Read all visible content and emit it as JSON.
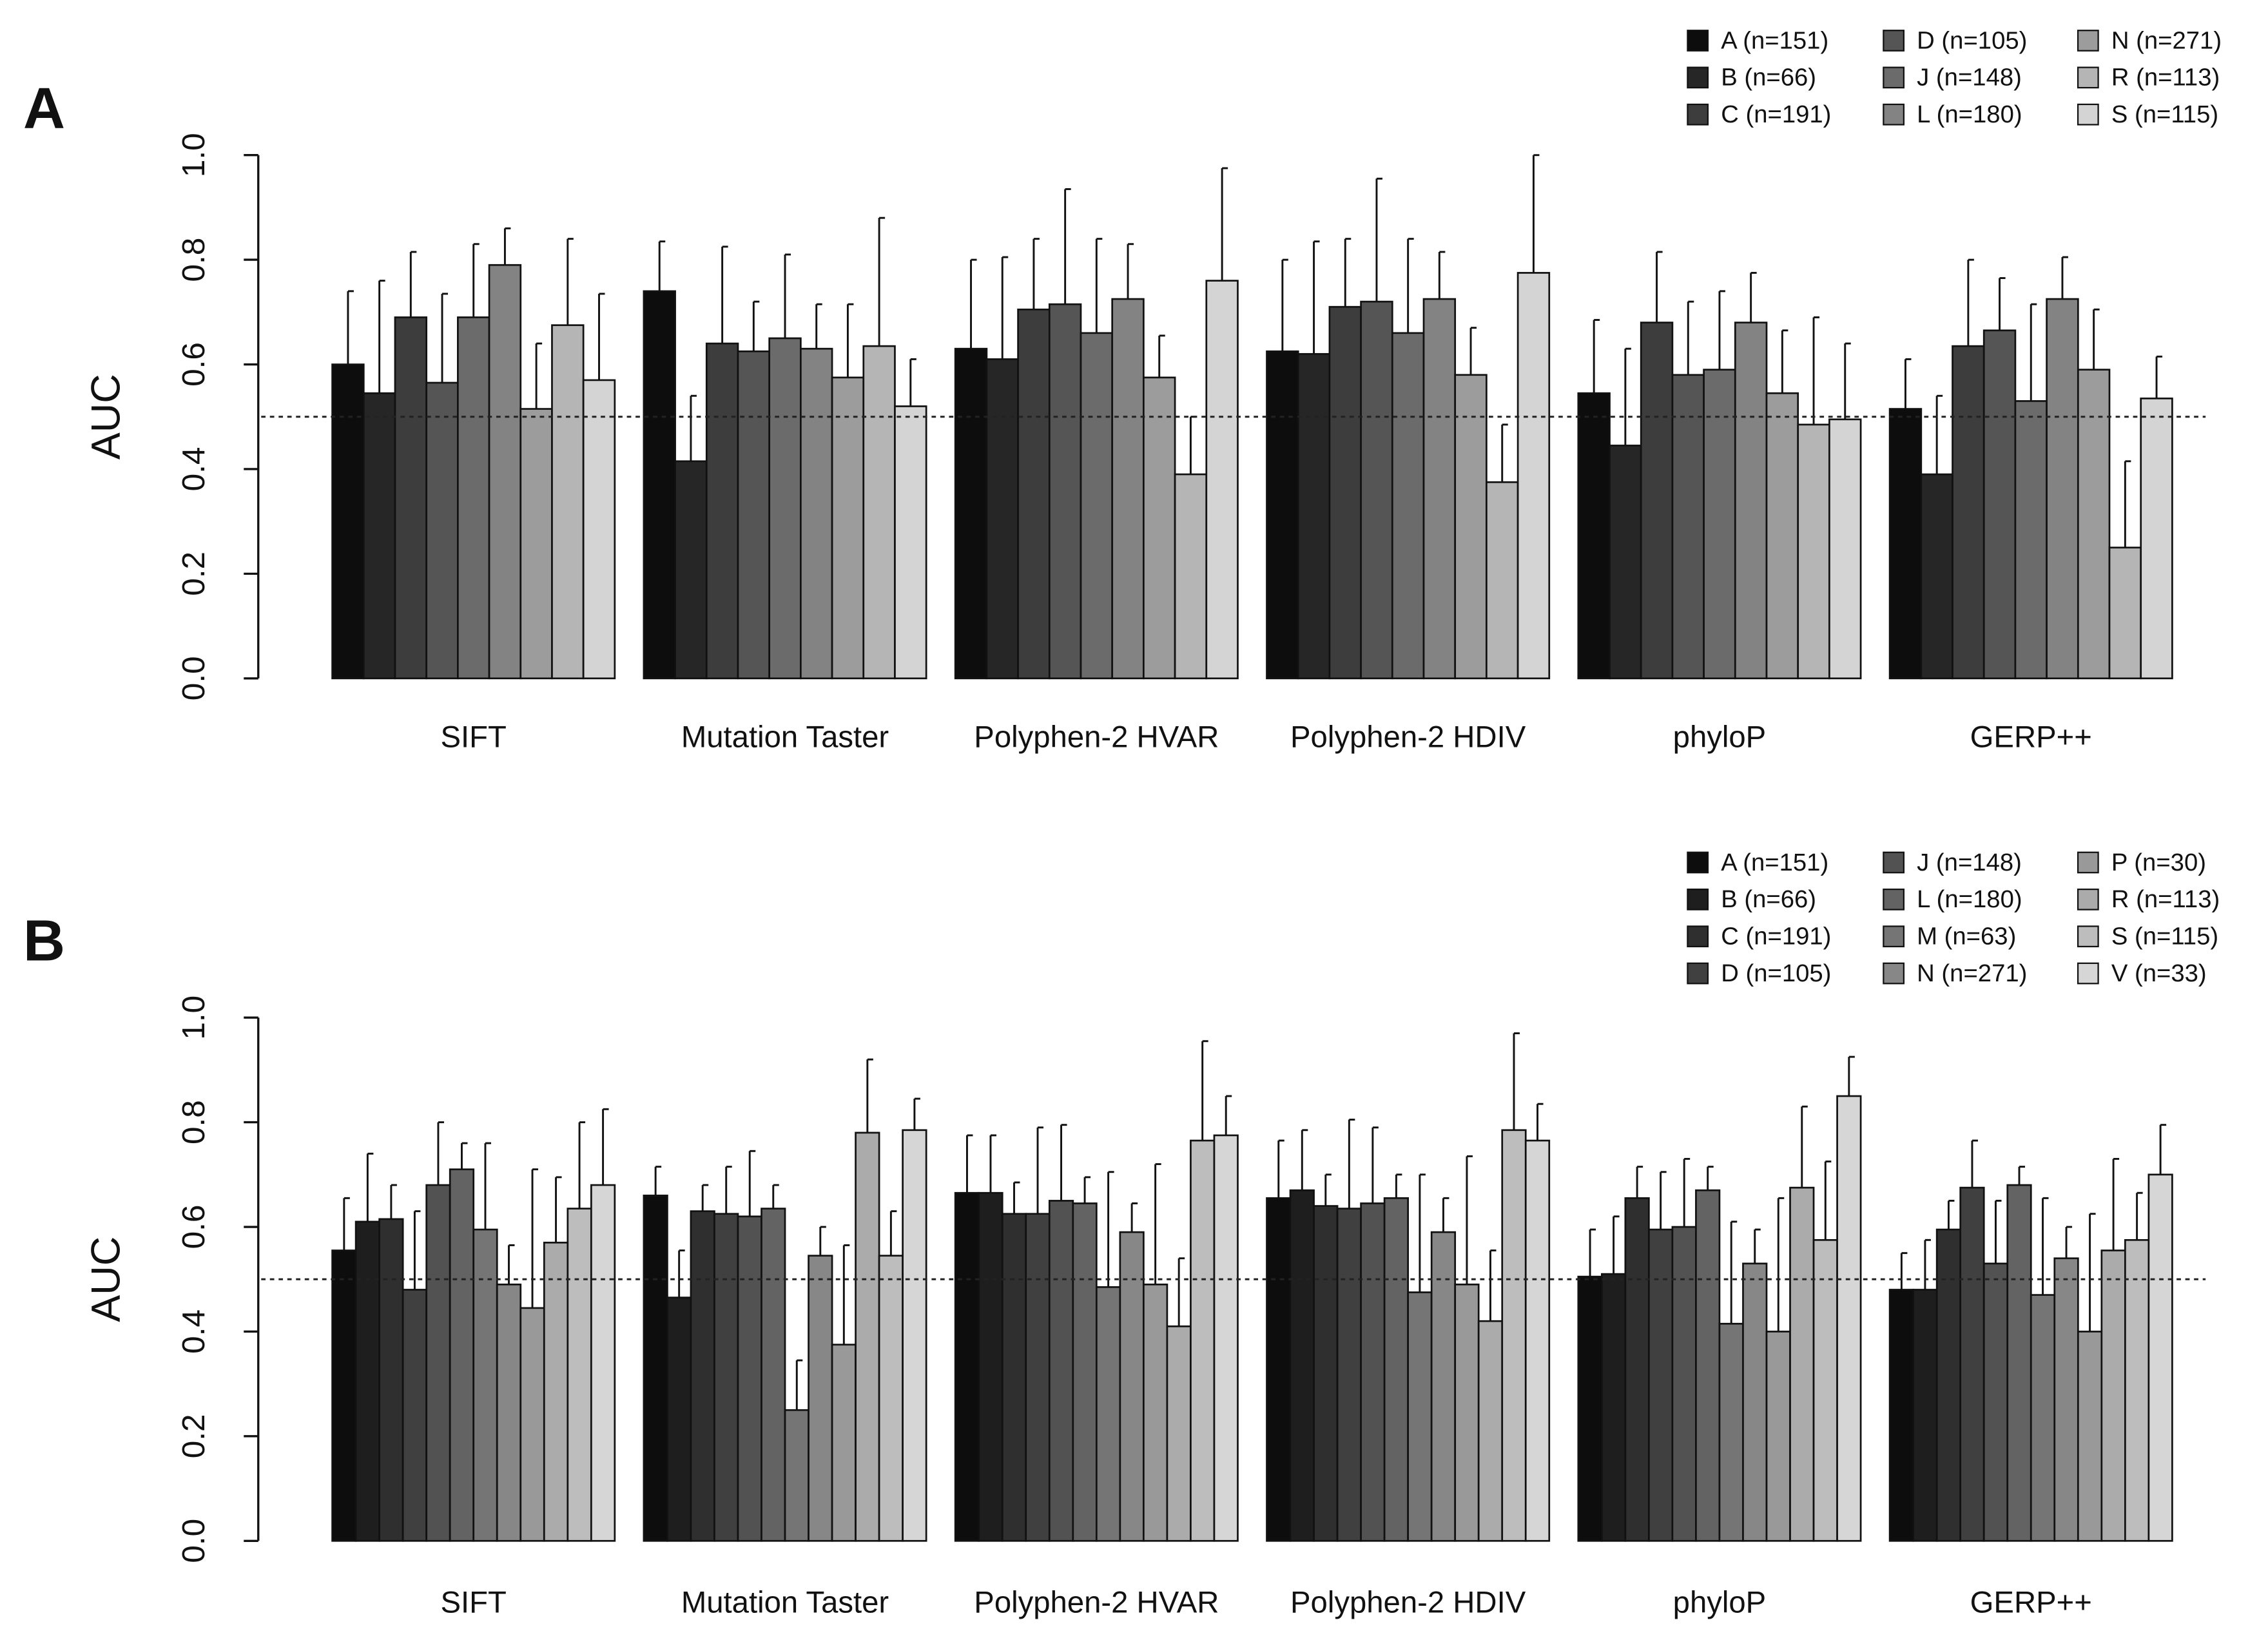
{
  "chart_data": [
    {
      "type": "bar",
      "panel_label": "A",
      "y_label": "AUC",
      "categories": [
        "SIFT",
        "Mutation Taster",
        "Polyphen-2 HVAR",
        "Polyphen-2 HDIV",
        "phyloP",
        "GERP++"
      ],
      "ylim": [
        0,
        1
      ],
      "yticks": [
        {
          "value": 0,
          "label": "0.0"
        },
        {
          "value": 0.2,
          "label": "0.2"
        },
        {
          "value": 0.4,
          "label": "0.4"
        },
        {
          "value": 0.6,
          "label": "0.6"
        },
        {
          "value": 0.8,
          "label": "0.8"
        },
        {
          "value": 1,
          "label": "1.0"
        }
      ],
      "reference_line": 0.5,
      "series": [
        {
          "name": "A (n=151)",
          "color": "#0d0d0d",
          "values": [
            0.6,
            0.74,
            0.63,
            0.625,
            0.545,
            0.515
          ],
          "errors": [
            0.14,
            0.095,
            0.17,
            0.175,
            0.14,
            0.095
          ]
        },
        {
          "name": "B (n=66)",
          "color": "#262626",
          "values": [
            0.545,
            0.415,
            0.61,
            0.62,
            0.445,
            0.39
          ],
          "errors": [
            0.215,
            0.125,
            0.195,
            0.215,
            0.185,
            0.15
          ]
        },
        {
          "name": "C (n=191)",
          "color": "#3d3d3d",
          "values": [
            0.69,
            0.64,
            0.705,
            0.71,
            0.68,
            0.635
          ],
          "errors": [
            0.125,
            0.185,
            0.135,
            0.13,
            0.135,
            0.165
          ]
        },
        {
          "name": "D (n=105)",
          "color": "#555555",
          "values": [
            0.565,
            0.625,
            0.715,
            0.72,
            0.58,
            0.665
          ],
          "errors": [
            0.17,
            0.095,
            0.22,
            0.235,
            0.14,
            0.1
          ]
        },
        {
          "name": "J (n=148)",
          "color": "#6b6b6b",
          "values": [
            0.69,
            0.65,
            0.66,
            0.66,
            0.59,
            0.53
          ],
          "errors": [
            0.14,
            0.16,
            0.18,
            0.18,
            0.15,
            0.185
          ]
        },
        {
          "name": "L (n=180)",
          "color": "#838383",
          "values": [
            0.79,
            0.63,
            0.725,
            0.725,
            0.68,
            0.725
          ],
          "errors": [
            0.07,
            0.085,
            0.105,
            0.09,
            0.095,
            0.08
          ]
        },
        {
          "name": "N (n=271)",
          "color": "#9c9c9c",
          "values": [
            0.515,
            0.575,
            0.575,
            0.58,
            0.545,
            0.59
          ],
          "errors": [
            0.125,
            0.14,
            0.08,
            0.09,
            0.12,
            0.115
          ]
        },
        {
          "name": "R (n=113)",
          "color": "#b5b5b5",
          "values": [
            0.675,
            0.635,
            0.39,
            0.375,
            0.485,
            0.25
          ],
          "errors": [
            0.165,
            0.245,
            0.11,
            0.11,
            0.205,
            0.165
          ]
        },
        {
          "name": "S (n=115)",
          "color": "#d4d4d4",
          "values": [
            0.57,
            0.52,
            0.76,
            0.775,
            0.495,
            0.535
          ],
          "errors": [
            0.165,
            0.09,
            0.215,
            0.225,
            0.145,
            0.08
          ]
        }
      ]
    },
    {
      "type": "bar",
      "panel_label": "B",
      "y_label": "AUC",
      "categories": [
        "SIFT",
        "Mutation Taster",
        "Polyphen-2 HVAR",
        "Polyphen-2 HDIV",
        "phyloP",
        "GERP++"
      ],
      "ylim": [
        0,
        1
      ],
      "yticks": [
        {
          "value": 0,
          "label": "0.0"
        },
        {
          "value": 0.2,
          "label": "0.2"
        },
        {
          "value": 0.4,
          "label": "0.4"
        },
        {
          "value": 0.6,
          "label": "0.6"
        },
        {
          "value": 0.8,
          "label": "0.8"
        },
        {
          "value": 1,
          "label": "1.0"
        }
      ],
      "reference_line": 0.5,
      "series": [
        {
          "name": "A (n=151)",
          "color": "#0d0d0d",
          "values": [
            0.555,
            0.66,
            0.665,
            0.655,
            0.505,
            0.48
          ],
          "errors": [
            0.1,
            0.055,
            0.11,
            0.11,
            0.09,
            0.07
          ]
        },
        {
          "name": "B (n=66)",
          "color": "#1e1e1e",
          "values": [
            0.61,
            0.465,
            0.665,
            0.67,
            0.51,
            0.48
          ],
          "errors": [
            0.13,
            0.09,
            0.11,
            0.115,
            0.11,
            0.095
          ]
        },
        {
          "name": "C (n=191)",
          "color": "#2f2f2f",
          "values": [
            0.615,
            0.63,
            0.625,
            0.64,
            0.655,
            0.595
          ],
          "errors": [
            0.065,
            0.05,
            0.06,
            0.06,
            0.06,
            0.055
          ]
        },
        {
          "name": "D (n=105)",
          "color": "#404040",
          "values": [
            0.48,
            0.625,
            0.625,
            0.635,
            0.595,
            0.675
          ],
          "errors": [
            0.15,
            0.09,
            0.165,
            0.17,
            0.11,
            0.09
          ]
        },
        {
          "name": "J (n=148)",
          "color": "#525252",
          "values": [
            0.68,
            0.62,
            0.65,
            0.645,
            0.6,
            0.53
          ],
          "errors": [
            0.12,
            0.125,
            0.145,
            0.145,
            0.13,
            0.12
          ]
        },
        {
          "name": "L (n=180)",
          "color": "#636363",
          "values": [
            0.71,
            0.635,
            0.645,
            0.655,
            0.67,
            0.68
          ],
          "errors": [
            0.05,
            0.045,
            0.05,
            0.045,
            0.045,
            0.035
          ]
        },
        {
          "name": "M (n=63)",
          "color": "#757575",
          "values": [
            0.595,
            0.25,
            0.485,
            0.475,
            0.415,
            0.47
          ],
          "errors": [
            0.165,
            0.095,
            0.22,
            0.225,
            0.195,
            0.185
          ]
        },
        {
          "name": "N (n=271)",
          "color": "#878787",
          "values": [
            0.49,
            0.545,
            0.59,
            0.59,
            0.53,
            0.54
          ],
          "errors": [
            0.075,
            0.055,
            0.055,
            0.065,
            0.065,
            0.06
          ]
        },
        {
          "name": "P (n=30)",
          "color": "#999999",
          "values": [
            0.445,
            0.375,
            0.49,
            0.49,
            0.4,
            0.4
          ],
          "errors": [
            0.265,
            0.19,
            0.23,
            0.245,
            0.255,
            0.225
          ]
        },
        {
          "name": "R (n=113)",
          "color": "#ababab",
          "values": [
            0.57,
            0.78,
            0.41,
            0.42,
            0.675,
            0.555
          ],
          "errors": [
            0.125,
            0.14,
            0.13,
            0.135,
            0.155,
            0.175
          ]
        },
        {
          "name": "S (n=115)",
          "color": "#bdbdbd",
          "values": [
            0.635,
            0.545,
            0.765,
            0.785,
            0.575,
            0.575
          ],
          "errors": [
            0.165,
            0.085,
            0.19,
            0.185,
            0.15,
            0.09
          ]
        },
        {
          "name": "V (n=33)",
          "color": "#d6d6d6",
          "values": [
            0.68,
            0.785,
            0.775,
            0.765,
            0.85,
            0.7
          ],
          "errors": [
            0.145,
            0.06,
            0.075,
            0.07,
            0.075,
            0.095
          ]
        }
      ]
    }
  ]
}
